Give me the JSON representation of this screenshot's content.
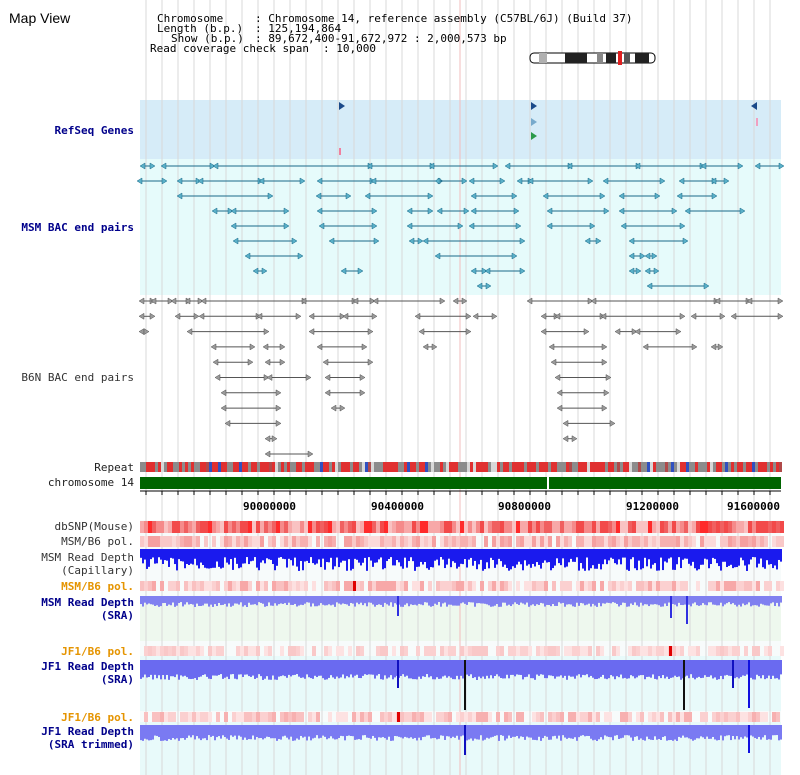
{
  "page": {
    "title": "Map View"
  },
  "info": {
    "chromosome_label": "Chromosome",
    "chromosome_value": ": Chromosome 14, reference assembly (C57BL/6J) (Build 37)",
    "length_label": "Length (b.p.)",
    "length_value": ": 125,194,864",
    "show_label": "Show (b.p.)",
    "show_value": ": 89,672,400-91,672,972 : 2,000,573 bp",
    "coverage_label": "Read coverage check span",
    "coverage_value": ": 10,000"
  },
  "tracks": {
    "refseq": "RefSeq Genes",
    "msm_bac": "MSM BAC end pairs",
    "b6n_bac": "B6N BAC end pairs",
    "repeat": "Repeat",
    "chromosome": "chromosome 14",
    "dbsnp": "dbSNP(Mouse)",
    "msm_b6_pol": "MSM/B6 pol.",
    "msm_depth_cap_1": "MSM Read Depth",
    "msm_depth_cap_2": "(Capillary)",
    "msm_b6_pol_2": "MSM/B6 pol.",
    "msm_depth_sra_1": "MSM Read Depth",
    "msm_depth_sra_2": "(SRA)",
    "jf1_b6_pol": "JF1/B6 pol.",
    "jf1_depth_sra_1": "JF1 Read Depth",
    "jf1_depth_sra_2": "(SRA)",
    "jf1_b6_pol_2": "JF1/B6 pol.",
    "jf1_depth_trim_1": "JF1 Read Depth",
    "jf1_depth_trim_2": "(SRA trimmed)"
  },
  "axis": {
    "ticks": [
      "90000000",
      "90400000",
      "90800000",
      "91200000",
      "91600000"
    ]
  },
  "colors": {
    "refseq_bg": "#d6ecf8",
    "msm_bg": "#e6fbfb",
    "chromosome_bar": "#006400",
    "depth_blue": "#1a1aee",
    "depth_light": "#8080f0",
    "pol_red": "#f26a6a",
    "label_navy": "#00008b",
    "label_orange": "#e59400"
  }
}
